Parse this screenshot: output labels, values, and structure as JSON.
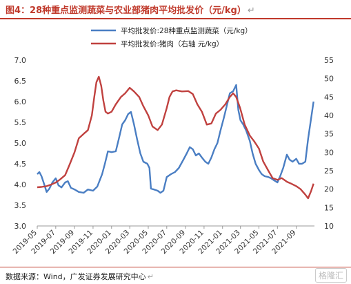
{
  "figure": {
    "title": "图4：28种重点监测蔬菜与农业部猪肉平均批发价（元/kg）",
    "title_mark": "↵",
    "source": "数据来源：Wind，广发证券发展研究中心",
    "source_mark": "↵",
    "watermark": "格隆汇"
  },
  "colors": {
    "veg": "#4a7ec3",
    "pork": "#c0413f",
    "accent": "#c0392b",
    "axis_text": "#333333"
  },
  "chart_data": {
    "type": "line",
    "legend_position": "top-center",
    "grid": false,
    "x_ticks": [
      "2019-05",
      "2019-07",
      "2019-09",
      "2019-11",
      "2020-01",
      "2020-03",
      "2020-05",
      "2020-07",
      "2020-09",
      "2020-11",
      "2021-01",
      "2021-03",
      "2021-05",
      "2021-07",
      "2021-09"
    ],
    "x_tick_dates": [
      "2019-05-01",
      "2019-07-01",
      "2019-09-01",
      "2019-11-01",
      "2020-01-01",
      "2020-03-01",
      "2020-05-01",
      "2020-07-01",
      "2020-09-01",
      "2020-11-01",
      "2021-01-01",
      "2021-03-01",
      "2021-05-01",
      "2021-07-01",
      "2021-09-01"
    ],
    "left_axis": {
      "ylim": [
        3.0,
        7.0
      ],
      "ticks": [
        "3.0",
        "3.5",
        "4.0",
        "4.5",
        "5.0",
        "5.5",
        "6.0",
        "6.5",
        "7.0"
      ]
    },
    "right_axis": {
      "ylim": [
        10,
        55
      ],
      "ticks": [
        "10",
        "15",
        "20",
        "25",
        "30",
        "35",
        "40",
        "45",
        "50",
        "55"
      ]
    },
    "series": [
      {
        "name": "平均批发价:28种重点监测蔬菜（元/kg）",
        "axis": "left",
        "points": [
          [
            "2019-05-01",
            4.25
          ],
          [
            "2019-05-08",
            4.3
          ],
          [
            "2019-05-15",
            4.2
          ],
          [
            "2019-05-22",
            4.05
          ],
          [
            "2019-06-01",
            3.82
          ],
          [
            "2019-06-10",
            3.9
          ],
          [
            "2019-06-20",
            4.05
          ],
          [
            "2019-07-01",
            4.15
          ],
          [
            "2019-07-10",
            3.98
          ],
          [
            "2019-07-20",
            3.93
          ],
          [
            "2019-08-01",
            4.05
          ],
          [
            "2019-08-10",
            4.08
          ],
          [
            "2019-08-20",
            3.92
          ],
          [
            "2019-09-01",
            3.88
          ],
          [
            "2019-09-15",
            3.82
          ],
          [
            "2019-10-01",
            3.8
          ],
          [
            "2019-10-15",
            3.88
          ],
          [
            "2019-11-01",
            3.85
          ],
          [
            "2019-11-15",
            3.95
          ],
          [
            "2019-12-01",
            4.25
          ],
          [
            "2019-12-10",
            4.5
          ],
          [
            "2019-12-20",
            4.8
          ],
          [
            "2020-01-01",
            4.78
          ],
          [
            "2020-01-15",
            4.8
          ],
          [
            "2020-01-25",
            5.1
          ],
          [
            "2020-02-05",
            5.45
          ],
          [
            "2020-02-15",
            5.55
          ],
          [
            "2020-02-25",
            5.7
          ],
          [
            "2020-03-05",
            5.75
          ],
          [
            "2020-03-15",
            5.45
          ],
          [
            "2020-03-25",
            5.1
          ],
          [
            "2020-04-05",
            4.75
          ],
          [
            "2020-04-15",
            4.55
          ],
          [
            "2020-04-28",
            4.5
          ],
          [
            "2020-05-05",
            4.4
          ],
          [
            "2020-05-10",
            3.9
          ],
          [
            "2020-05-20",
            3.88
          ],
          [
            "2020-06-01",
            3.85
          ],
          [
            "2020-06-10",
            3.8
          ],
          [
            "2020-06-20",
            3.85
          ],
          [
            "2020-07-01",
            4.18
          ],
          [
            "2020-07-15",
            4.25
          ],
          [
            "2020-07-28",
            4.3
          ],
          [
            "2020-08-10",
            4.4
          ],
          [
            "2020-08-25",
            4.6
          ],
          [
            "2020-09-05",
            4.75
          ],
          [
            "2020-09-15",
            4.9
          ],
          [
            "2020-09-25",
            4.85
          ],
          [
            "2020-10-05",
            4.7
          ],
          [
            "2020-10-15",
            4.75
          ],
          [
            "2020-10-25",
            4.65
          ],
          [
            "2020-11-05",
            4.55
          ],
          [
            "2020-11-15",
            4.5
          ],
          [
            "2020-11-25",
            4.65
          ],
          [
            "2020-12-05",
            4.85
          ],
          [
            "2020-12-15",
            5.0
          ],
          [
            "2020-12-25",
            5.3
          ],
          [
            "2021-01-05",
            5.6
          ],
          [
            "2021-01-15",
            5.9
          ],
          [
            "2021-01-25",
            6.2
          ],
          [
            "2021-02-05",
            6.25
          ],
          [
            "2021-02-15",
            6.4
          ],
          [
            "2021-02-22",
            5.8
          ],
          [
            "2021-03-01",
            5.55
          ],
          [
            "2021-03-10",
            5.45
          ],
          [
            "2021-03-20",
            5.3
          ],
          [
            "2021-04-01",
            5.05
          ],
          [
            "2021-04-10",
            4.75
          ],
          [
            "2021-04-20",
            4.5
          ],
          [
            "2021-05-01",
            4.35
          ],
          [
            "2021-05-10",
            4.25
          ],
          [
            "2021-05-20",
            4.2
          ],
          [
            "2021-06-01",
            4.18
          ],
          [
            "2021-06-10",
            4.15
          ],
          [
            "2021-06-20",
            4.1
          ],
          [
            "2021-07-01",
            4.05
          ],
          [
            "2021-07-10",
            4.2
          ],
          [
            "2021-07-20",
            4.4
          ],
          [
            "2021-08-01",
            4.72
          ],
          [
            "2021-08-10",
            4.6
          ],
          [
            "2021-08-20",
            4.55
          ],
          [
            "2021-09-01",
            4.62
          ],
          [
            "2021-09-10",
            4.5
          ],
          [
            "2021-09-20",
            4.5
          ],
          [
            "2021-10-01",
            4.55
          ],
          [
            "2021-10-10",
            5.1
          ],
          [
            "2021-10-20",
            5.6
          ],
          [
            "2021-10-28",
            6.0
          ]
        ]
      },
      {
        "name": "平均批发价:猪肉（右轴 元/kg）",
        "axis": "right",
        "points": [
          [
            "2019-05-01",
            20.5
          ],
          [
            "2019-05-15",
            20.6
          ],
          [
            "2019-06-01",
            20.8
          ],
          [
            "2019-06-15",
            21.2
          ],
          [
            "2019-07-01",
            21.8
          ],
          [
            "2019-07-15",
            22.6
          ],
          [
            "2019-08-01",
            23.8
          ],
          [
            "2019-08-15",
            26.5
          ],
          [
            "2019-09-01",
            30.0
          ],
          [
            "2019-09-15",
            33.8
          ],
          [
            "2019-10-01",
            35.0
          ],
          [
            "2019-10-15",
            36.0
          ],
          [
            "2019-10-28",
            40.0
          ],
          [
            "2019-11-05",
            45.0
          ],
          [
            "2019-11-12",
            49.0
          ],
          [
            "2019-11-20",
            50.5
          ],
          [
            "2019-11-28",
            48.0
          ],
          [
            "2019-12-05",
            44.0
          ],
          [
            "2019-12-12",
            41.0
          ],
          [
            "2019-12-20",
            40.5
          ],
          [
            "2020-01-01",
            41.0
          ],
          [
            "2020-01-15",
            43.0
          ],
          [
            "2020-02-01",
            45.0
          ],
          [
            "2020-02-15",
            46.0
          ],
          [
            "2020-03-01",
            47.5
          ],
          [
            "2020-03-15",
            46.5
          ],
          [
            "2020-04-01",
            45.0
          ],
          [
            "2020-04-15",
            42.5
          ],
          [
            "2020-05-01",
            40.0
          ],
          [
            "2020-05-15",
            37.0
          ],
          [
            "2020-06-01",
            36.0
          ],
          [
            "2020-06-15",
            37.5
          ],
          [
            "2020-07-01",
            42.0
          ],
          [
            "2020-07-10",
            45.0
          ],
          [
            "2020-07-20",
            46.5
          ],
          [
            "2020-08-01",
            46.8
          ],
          [
            "2020-08-20",
            46.5
          ],
          [
            "2020-09-10",
            46.6
          ],
          [
            "2020-09-25",
            45.8
          ],
          [
            "2020-10-10",
            43.0
          ],
          [
            "2020-10-25",
            41.0
          ],
          [
            "2020-11-10",
            37.5
          ],
          [
            "2020-11-25",
            37.8
          ],
          [
            "2020-12-10",
            40.5
          ],
          [
            "2020-12-25",
            41.5
          ],
          [
            "2021-01-10",
            43.0
          ],
          [
            "2021-01-25",
            45.0
          ],
          [
            "2021-02-05",
            46.0
          ],
          [
            "2021-02-15",
            45.0
          ],
          [
            "2021-02-28",
            42.0
          ],
          [
            "2021-03-15",
            37.5
          ],
          [
            "2021-04-01",
            34.5
          ],
          [
            "2021-04-15",
            33.0
          ],
          [
            "2021-05-01",
            31.0
          ],
          [
            "2021-05-15",
            27.5
          ],
          [
            "2021-06-01",
            25.0
          ],
          [
            "2021-06-15",
            23.0
          ],
          [
            "2021-07-01",
            22.5
          ],
          [
            "2021-07-15",
            23.0
          ],
          [
            "2021-08-01",
            22.0
          ],
          [
            "2021-08-15",
            21.5
          ],
          [
            "2021-09-01",
            20.8
          ],
          [
            "2021-09-15",
            20.0
          ],
          [
            "2021-10-01",
            18.5
          ],
          [
            "2021-10-10",
            17.5
          ],
          [
            "2021-10-20",
            19.5
          ],
          [
            "2021-10-28",
            21.5
          ]
        ]
      }
    ]
  }
}
